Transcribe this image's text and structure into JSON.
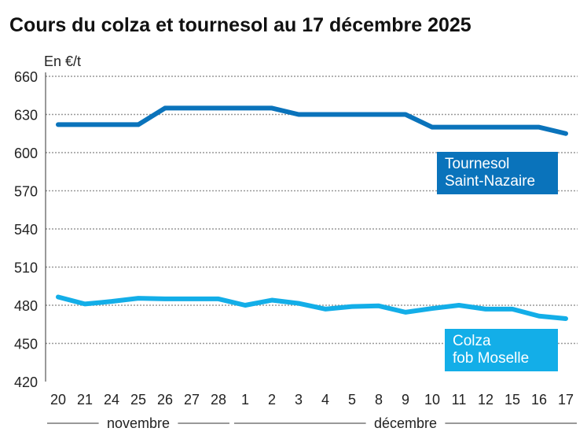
{
  "title": "Cours du colza et tournesol au 17 décembre 2025",
  "chart_data": {
    "type": "line",
    "title": "Cours du colza et tournesol au 17 décembre 2025",
    "ylabel": "En €/t",
    "ylim": [
      420,
      660
    ],
    "yticks": [
      420,
      450,
      480,
      510,
      540,
      570,
      600,
      630,
      660
    ],
    "grid": true,
    "categories": [
      "20",
      "21",
      "24",
      "25",
      "26",
      "27",
      "28",
      "1",
      "2",
      "3",
      "4",
      "5",
      "8",
      "9",
      "10",
      "11",
      "12",
      "15",
      "16",
      "17"
    ],
    "months": [
      {
        "label": "novembre",
        "from": 0,
        "to": 6
      },
      {
        "label": "décembre",
        "from": 7,
        "to": 19
      }
    ],
    "series": [
      {
        "name": "Tournesol Saint-Nazaire",
        "name_lines": [
          "Tournesol",
          "Saint-Nazaire"
        ],
        "color": "#0a73bb",
        "values": [
          622,
          622,
          622,
          622,
          635,
          635,
          635,
          635,
          635,
          630,
          630,
          630,
          630,
          630,
          620,
          620,
          620,
          620,
          620,
          615
        ]
      },
      {
        "name": "Colza fob Moselle",
        "name_lines": [
          "Colza",
          "fob Moselle"
        ],
        "color": "#13aee8",
        "values": [
          486.5,
          481,
          483,
          485.5,
          485,
          485,
          485,
          480,
          484,
          481.5,
          477,
          479,
          479.5,
          474.5,
          477.5,
          480,
          477,
          477,
          471.5,
          469.5
        ]
      }
    ]
  }
}
